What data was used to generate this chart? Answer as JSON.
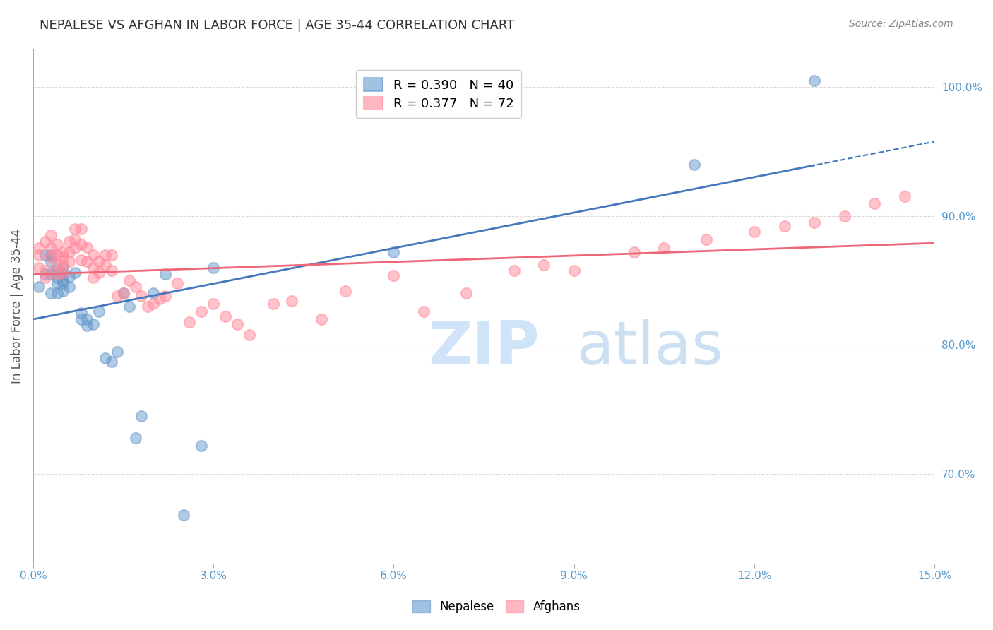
{
  "title": "NEPALESE VS AFGHAN IN LABOR FORCE | AGE 35-44 CORRELATION CHART",
  "source": "Source: ZipAtlas.com",
  "xlabel_bottom": "",
  "ylabel": "In Labor Force | Age 35-44",
  "xlim": [
    0.0,
    0.15
  ],
  "ylim": [
    0.63,
    1.03
  ],
  "xticks": [
    0.0,
    0.03,
    0.06,
    0.09,
    0.12,
    0.15
  ],
  "yticks": [
    0.7,
    0.8,
    0.9,
    1.0
  ],
  "ytick_labels": [
    "70.0%",
    "80.0%",
    "90.0%",
    "100.0%"
  ],
  "xtick_labels": [
    "0.0%",
    "3.0%",
    "6.0%",
    "9.0%",
    "12.0%",
    "15.0%"
  ],
  "nepalese_R": 0.39,
  "nepalese_N": 40,
  "afghan_R": 0.377,
  "afghan_N": 72,
  "nepalese_color": "#6699cc",
  "afghan_color": "#ff8899",
  "trend_line_color_nepalese": "#4477bb",
  "trend_line_color_afghan": "#ee6677",
  "background_color": "#ffffff",
  "grid_color": "#cccccc",
  "axis_color": "#aaaaaa",
  "title_color": "#333333",
  "source_color": "#888888",
  "tick_color": "#5599cc",
  "watermark_color": "#d0e4f7",
  "nepalese_x": [
    0.001,
    0.002,
    0.002,
    0.003,
    0.003,
    0.003,
    0.003,
    0.004,
    0.004,
    0.004,
    0.004,
    0.005,
    0.005,
    0.005,
    0.005,
    0.005,
    0.006,
    0.006,
    0.007,
    0.008,
    0.008,
    0.009,
    0.009,
    0.01,
    0.011,
    0.012,
    0.013,
    0.014,
    0.015,
    0.016,
    0.017,
    0.018,
    0.02,
    0.022,
    0.025,
    0.028,
    0.03,
    0.06,
    0.11,
    0.13
  ],
  "nepalese_y": [
    0.845,
    0.87,
    0.855,
    0.84,
    0.855,
    0.865,
    0.87,
    0.84,
    0.848,
    0.852,
    0.858,
    0.842,
    0.848,
    0.85,
    0.855,
    0.86,
    0.845,
    0.853,
    0.856,
    0.82,
    0.825,
    0.815,
    0.82,
    0.816,
    0.826,
    0.79,
    0.787,
    0.795,
    0.84,
    0.83,
    0.728,
    0.745,
    0.84,
    0.855,
    0.668,
    0.722,
    0.86,
    0.872,
    0.94,
    1.005
  ],
  "afghan_x": [
    0.001,
    0.001,
    0.001,
    0.002,
    0.002,
    0.002,
    0.003,
    0.003,
    0.003,
    0.004,
    0.004,
    0.004,
    0.004,
    0.005,
    0.005,
    0.005,
    0.005,
    0.006,
    0.006,
    0.006,
    0.007,
    0.007,
    0.007,
    0.008,
    0.008,
    0.008,
    0.009,
    0.009,
    0.01,
    0.01,
    0.01,
    0.011,
    0.011,
    0.012,
    0.012,
    0.013,
    0.013,
    0.014,
    0.015,
    0.016,
    0.017,
    0.018,
    0.019,
    0.02,
    0.021,
    0.022,
    0.024,
    0.026,
    0.028,
    0.03,
    0.032,
    0.034,
    0.036,
    0.04,
    0.043,
    0.048,
    0.052,
    0.06,
    0.065,
    0.072,
    0.08,
    0.085,
    0.09,
    0.1,
    0.105,
    0.112,
    0.12,
    0.125,
    0.13,
    0.135,
    0.14,
    0.145
  ],
  "afghan_y": [
    0.875,
    0.87,
    0.86,
    0.88,
    0.858,
    0.852,
    0.885,
    0.875,
    0.868,
    0.878,
    0.87,
    0.862,
    0.855,
    0.872,
    0.868,
    0.862,
    0.856,
    0.88,
    0.872,
    0.865,
    0.89,
    0.882,
    0.875,
    0.89,
    0.878,
    0.866,
    0.876,
    0.865,
    0.87,
    0.86,
    0.852,
    0.865,
    0.856,
    0.87,
    0.862,
    0.87,
    0.858,
    0.838,
    0.84,
    0.85,
    0.845,
    0.838,
    0.83,
    0.832,
    0.836,
    0.838,
    0.848,
    0.818,
    0.826,
    0.832,
    0.822,
    0.816,
    0.808,
    0.832,
    0.834,
    0.82,
    0.842,
    0.854,
    0.826,
    0.84,
    0.858,
    0.862,
    0.858,
    0.872,
    0.875,
    0.882,
    0.888,
    0.892,
    0.895,
    0.9,
    0.91,
    0.915
  ],
  "legend_items": [
    {
      "label": "R = 0.390   N = 40",
      "color": "#6699cc"
    },
    {
      "label": "R = 0.377   N = 72",
      "color": "#ff8899"
    }
  ],
  "marker_size": 120,
  "marker_alpha": 0.5,
  "marker_linewidth": 1.5
}
